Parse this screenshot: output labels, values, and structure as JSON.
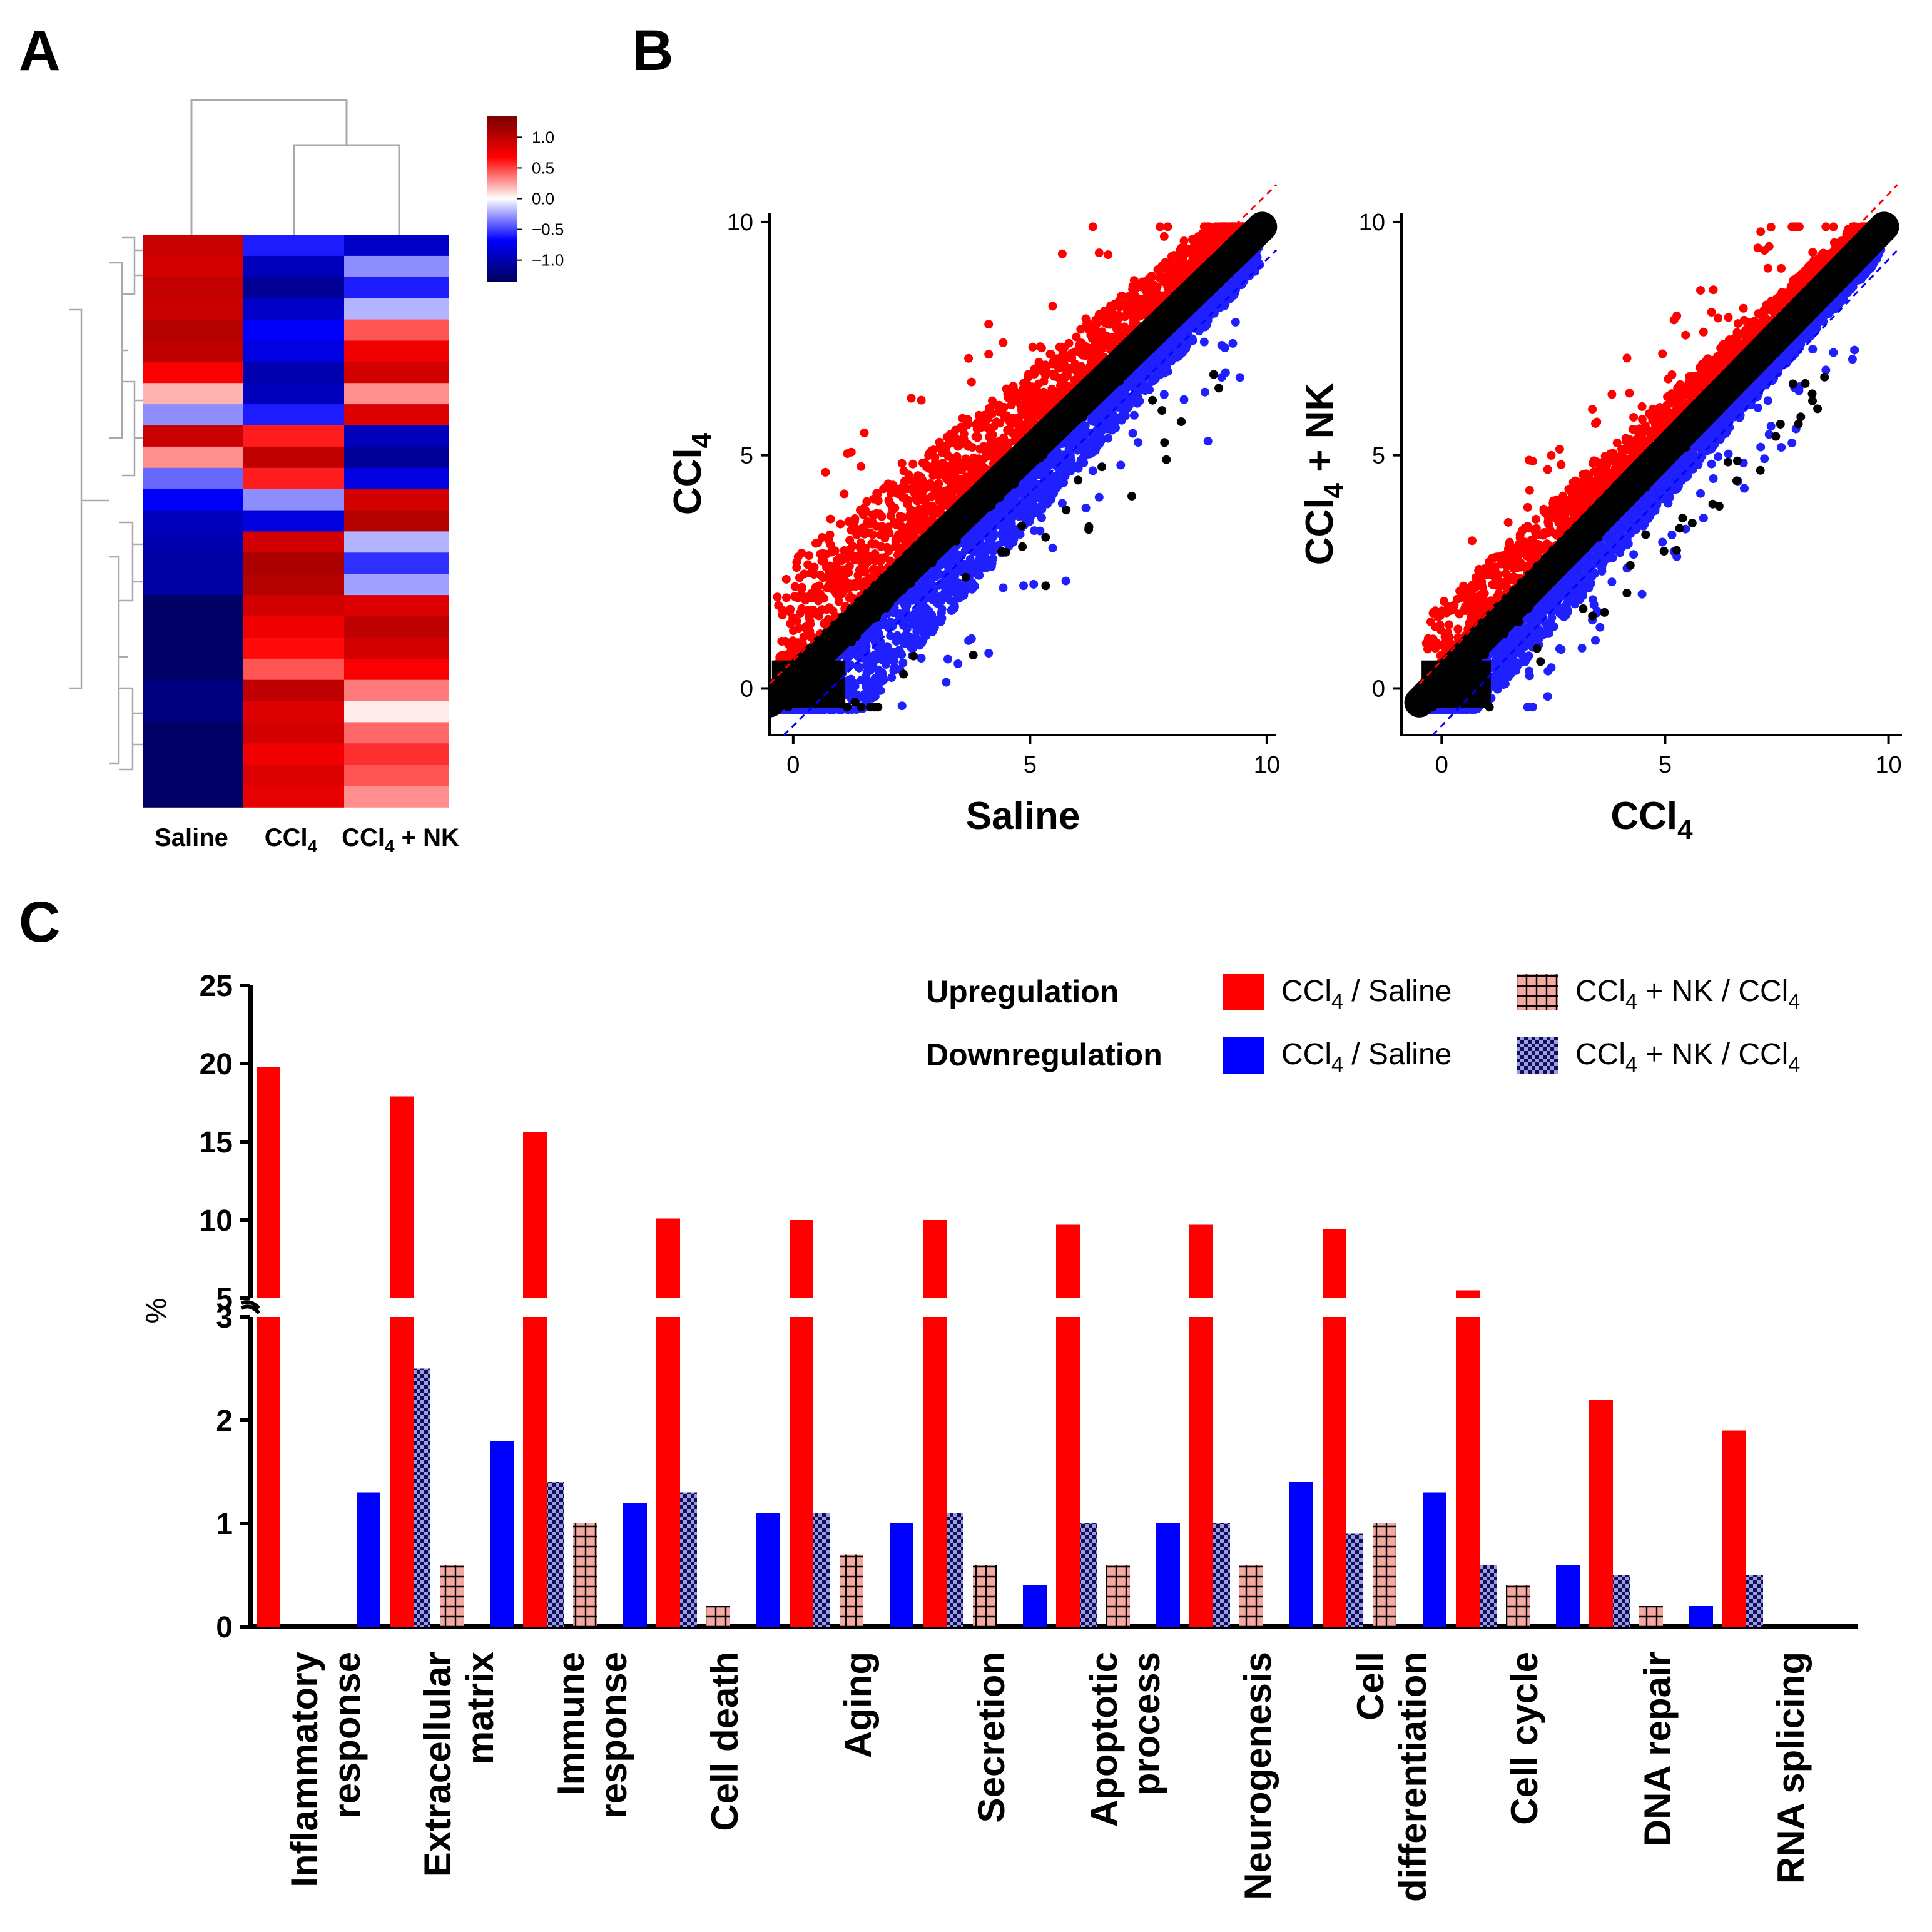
{
  "figure": {
    "panels": {
      "a": "A",
      "b": "B",
      "c": "C"
    }
  },
  "colors": {
    "up": "#ff0000",
    "down": "#0000ff",
    "up_nk": "#f4a8a0",
    "down_nk": "#8a8ae6",
    "black": "#000000",
    "dendro": "#aaaaaa"
  },
  "heatmap": {
    "columns": [
      "Saline",
      "CCl",
      "CCl"
    ],
    "column_subscripts": [
      "",
      "4",
      "4"
    ],
    "column_suffixes": [
      "",
      "",
      " + NK"
    ],
    "colorbar_ticks": [
      "1.0",
      "0.5",
      "0.0",
      "−0.5",
      "−1.0"
    ],
    "colorbar_values": [
      1.0,
      0.5,
      0.0,
      -0.5,
      -1.0
    ],
    "colorbar_range": [
      -1.35,
      1.35
    ],
    "rows": [
      [
        0.95,
        -0.6,
        -0.9
      ],
      [
        0.9,
        -0.95,
        -0.3
      ],
      [
        0.98,
        -1.1,
        -0.6
      ],
      [
        0.95,
        -0.9,
        -0.2
      ],
      [
        1.05,
        -0.7,
        0.45
      ],
      [
        1.0,
        -0.8,
        0.75
      ],
      [
        0.7,
        -1.0,
        0.9
      ],
      [
        0.2,
        -0.95,
        0.3
      ],
      [
        -0.3,
        -0.6,
        0.85
      ],
      [
        0.95,
        0.6,
        -0.95
      ],
      [
        0.3,
        1.0,
        -1.1
      ],
      [
        -0.4,
        0.6,
        -0.8
      ],
      [
        -0.7,
        -0.3,
        0.9
      ],
      [
        -0.95,
        -0.8,
        1.05
      ],
      [
        -1.0,
        0.9,
        -0.2
      ],
      [
        -1.05,
        1.1,
        -0.55
      ],
      [
        -1.05,
        1.05,
        -0.25
      ],
      [
        -1.3,
        0.9,
        0.85
      ],
      [
        -1.3,
        0.75,
        1.0
      ],
      [
        -1.3,
        0.65,
        0.9
      ],
      [
        -1.3,
        0.45,
        0.7
      ],
      [
        -1.2,
        1.0,
        0.35
      ],
      [
        -1.2,
        0.85,
        0.05
      ],
      [
        -1.3,
        0.9,
        0.4
      ],
      [
        -1.3,
        0.75,
        0.55
      ],
      [
        -1.3,
        0.85,
        0.45
      ],
      [
        -1.3,
        0.8,
        0.3
      ]
    ]
  },
  "scatter": [
    {
      "x_label": "Saline",
      "x_label_sub": "",
      "x_label_suffix": "",
      "y_label": "CCl",
      "y_label_sub": "4",
      "y_label_suffix": "",
      "x_ticks": [
        "0",
        "5",
        "10"
      ],
      "y_ticks": [
        "0",
        "5",
        "10"
      ],
      "x_range": [
        -0.5,
        10.2
      ],
      "y_range": [
        -1.0,
        10.2
      ],
      "tick_values": [
        0,
        5,
        10
      ],
      "spread": 1.0,
      "outlier_rate": 0.045,
      "seed": 17
    },
    {
      "x_label": "CCl",
      "x_label_sub": "4",
      "x_label_suffix": "",
      "y_label": "CCl",
      "y_label_sub": "4",
      "y_label_suffix": " + NK",
      "x_ticks": [
        "0",
        "5",
        "10"
      ],
      "y_ticks": [
        "0",
        "5",
        "10"
      ],
      "x_range": [
        -0.9,
        10.3
      ],
      "y_range": [
        -1.0,
        10.2
      ],
      "tick_values": [
        0,
        5,
        10
      ],
      "spread": 0.65,
      "outlier_rate": 0.015,
      "seed": 29
    }
  ],
  "chart_data": {
    "type": "bar",
    "ylabel": "%",
    "y_ticks_upper": [
      "25",
      "20",
      "15",
      "10",
      "5"
    ],
    "y_ticks_lower": [
      "3",
      "2",
      "1",
      "0"
    ],
    "y_axis_break": {
      "lower_range": [
        0,
        3
      ],
      "upper_range": [
        5,
        25
      ]
    },
    "legend": {
      "row_labels": [
        "Upregulation",
        "Downregulation"
      ],
      "series_label_base": "CCl",
      "series_label_sub": "4",
      "series_label_a_suffix": " / Saline",
      "series_label_b_suffix": " + NK / CCl",
      "series_label_b_sub": "4"
    },
    "categories": [
      [
        "Inflammatory",
        "response"
      ],
      [
        "Extracellular",
        "matrix"
      ],
      [
        "Immune",
        "response"
      ],
      [
        "Cell death"
      ],
      [
        "Aging"
      ],
      [
        "Secretion"
      ],
      [
        "Apoptotic",
        "process"
      ],
      [
        "Neurogenesis"
      ],
      [
        "Cell",
        "differentiation"
      ],
      [
        "Cell  cycle"
      ],
      [
        "DNA repair"
      ],
      [
        "RNA splicing"
      ]
    ],
    "series": [
      {
        "name": "Upregulation CCl4 / Saline",
        "values": [
          19.8,
          17.9,
          15.6,
          10.1,
          10.0,
          10.0,
          9.7,
          9.7,
          9.4,
          5.5,
          2.2,
          1.9
        ]
      },
      {
        "name": "Upregulation CCl4 + NK / CCl4",
        "values": [
          0,
          0.6,
          1.0,
          0.2,
          0.7,
          0.6,
          0.6,
          0.6,
          1.0,
          0.4,
          0.2,
          0
        ]
      },
      {
        "name": "Downregulation CCl4 / Saline",
        "values": [
          1.3,
          1.8,
          1.2,
          1.1,
          1.0,
          0.4,
          1.0,
          1.4,
          1.3,
          0.6,
          0.2,
          0
        ]
      },
      {
        "name": "Downregulation CCl4 + NK / CCl4",
        "values": [
          2.5,
          1.4,
          1.3,
          1.1,
          1.1,
          1.0,
          1.0,
          0.9,
          0.6,
          0.5,
          0.5,
          0
        ]
      }
    ]
  }
}
